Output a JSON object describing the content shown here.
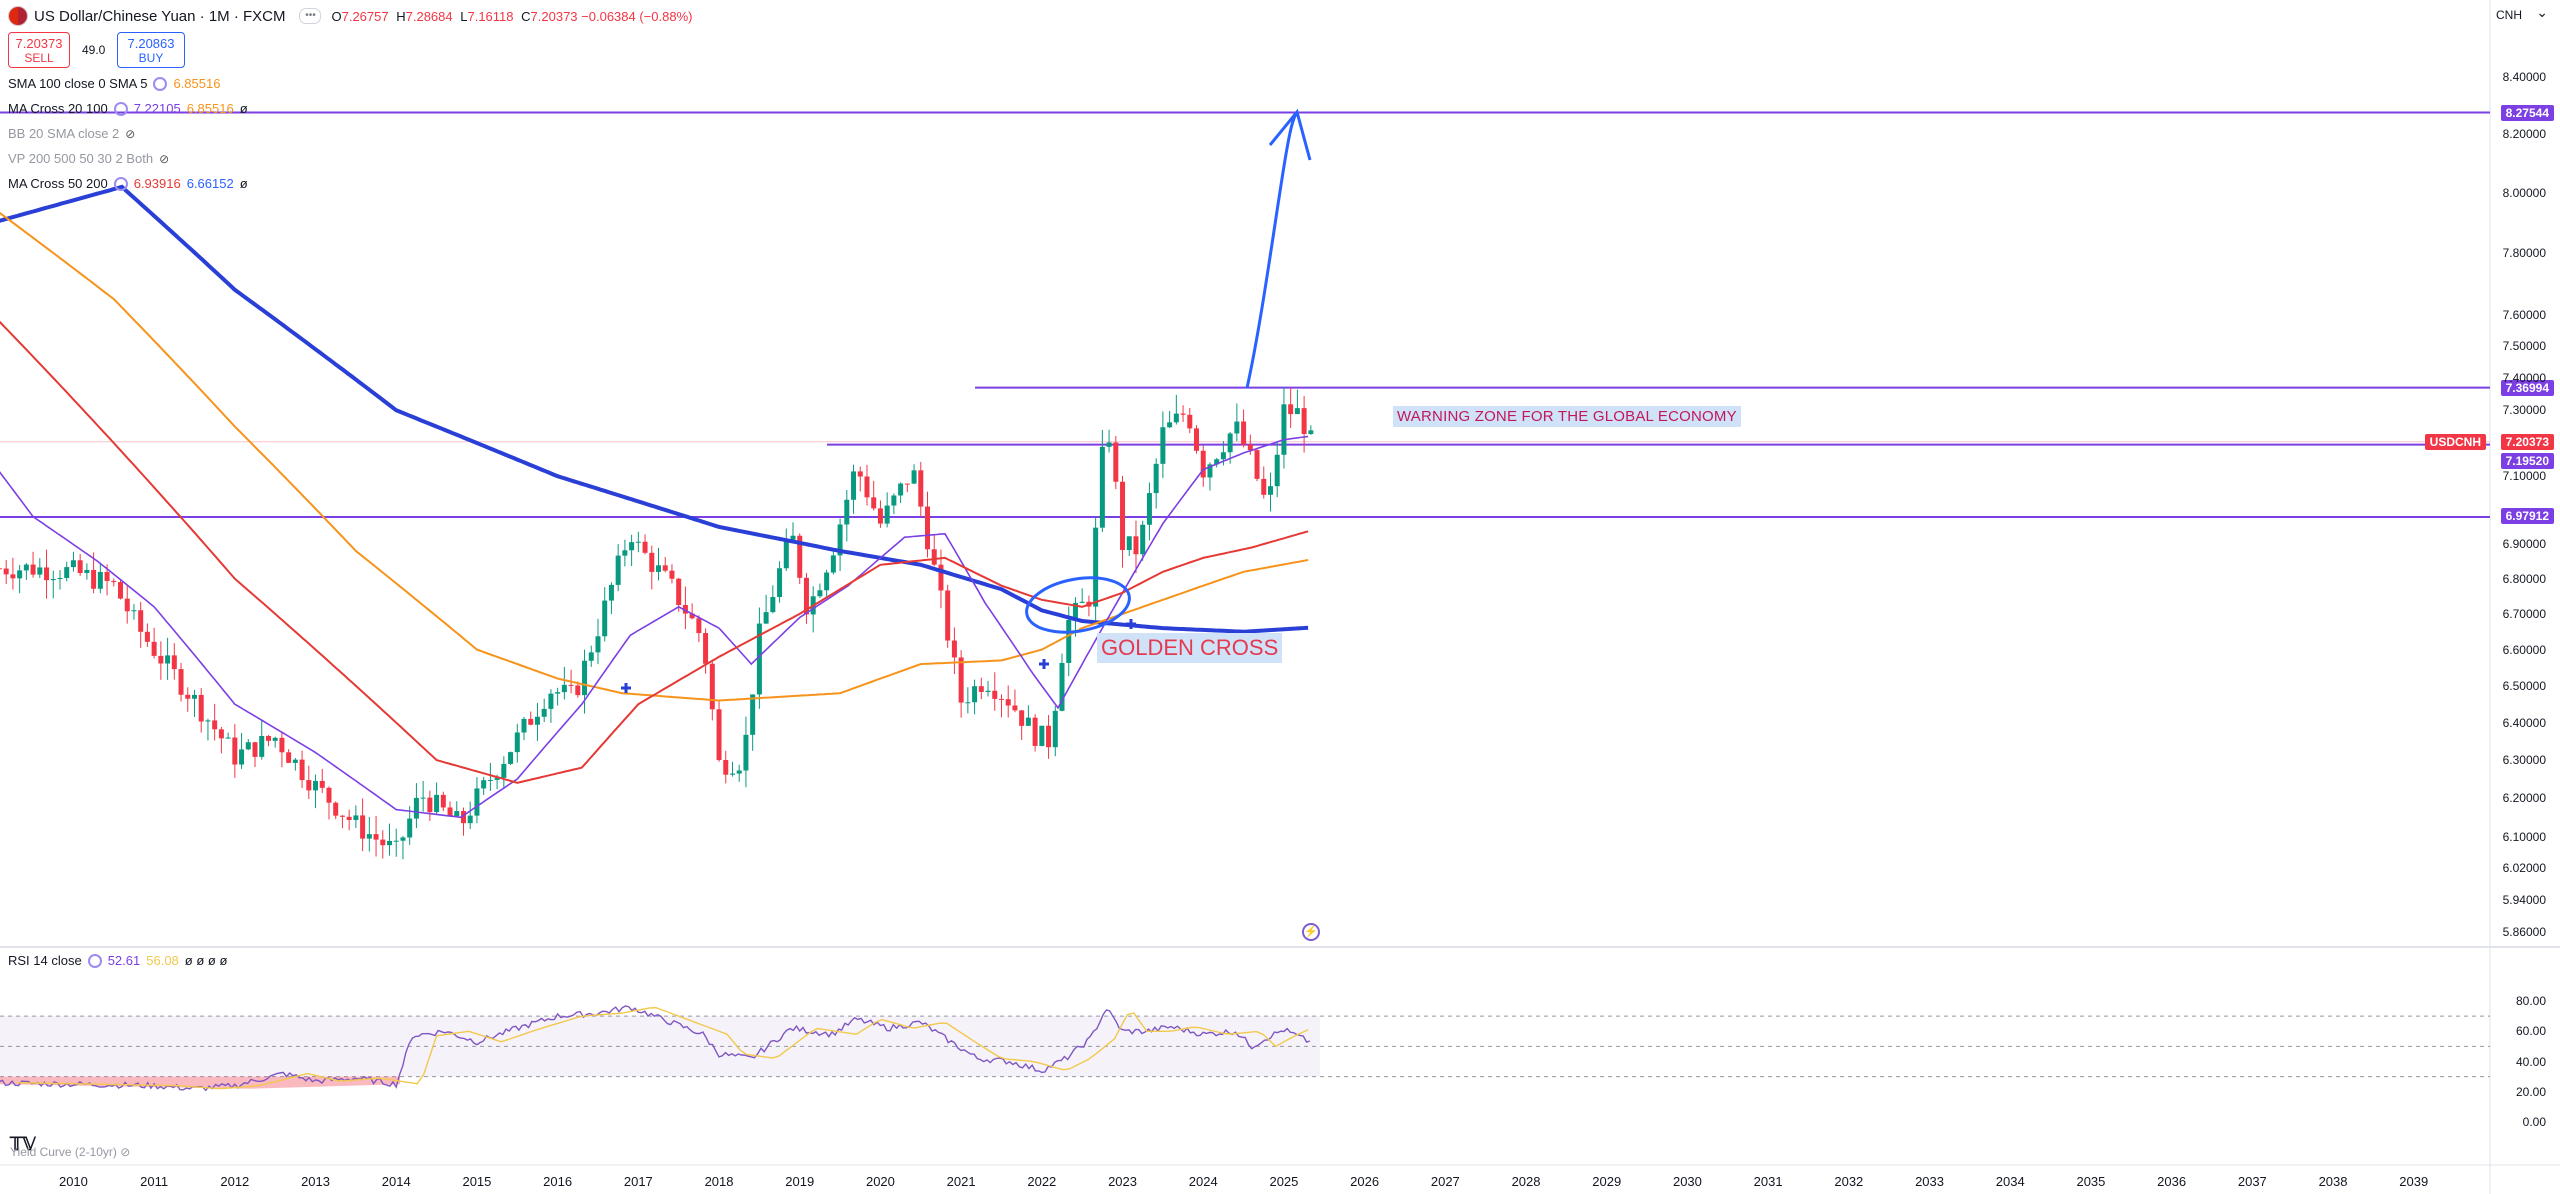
{
  "header": {
    "title": "US Dollar/Chinese Yuan · 1M · FXCM",
    "open_label": "O",
    "open": "7.26757",
    "high_label": "H",
    "high": "7.28684",
    "low_label": "L",
    "low": "7.16118",
    "close_label": "C",
    "close": "7.20373",
    "change": "−0.06384 (−0.88%)",
    "currency": "CNH"
  },
  "trade": {
    "sell_price": "7.20373",
    "sell_label": "SELL",
    "spread": "49.0",
    "buy_price": "7.20863",
    "buy_label": "BUY"
  },
  "indicators": [
    {
      "name": "SMA 100 close 0 SMA 5",
      "v1": "6.85516",
      "v2": "",
      "c1": "#f7931a"
    },
    {
      "name": "MA Cross 20 100",
      "v1": "7.22105",
      "v2": "6.85516",
      "c1": "#7b3fe4",
      "c2": "#f7931a",
      "extra": "ø"
    },
    {
      "name": "BB 20 SMA close 2",
      "v1": "",
      "v2": ""
    },
    {
      "name": "VP 200 500 50 30 2 Both",
      "v1": "",
      "v2": ""
    },
    {
      "name": "MA Cross 50 200",
      "v1": "6.93916",
      "v2": "6.66152",
      "c1": "#e53935",
      "c2": "#2962ff",
      "extra": "ø"
    }
  ],
  "annotations": {
    "warning": "WARNING ZONE FOR THE GLOBAL ECONOMY",
    "golden_cross": "GOLDEN CROSS"
  },
  "price_tags": {
    "top": "8.27544",
    "upper": "7.36994",
    "symbol": "USDCNH",
    "last": "7.20373",
    "mid": "7.19520",
    "lower": "6.97912"
  },
  "rsi": {
    "label": "RSI 14 close",
    "v1": "52.61",
    "v2": "56.08",
    "rest": "ø ø ø ø",
    "levels": [
      70,
      30,
      50
    ],
    "ticks": [
      "80.00",
      "60.00",
      "40.00",
      "20.00",
      "0.00"
    ]
  },
  "yield_label": "Yield Curve (2-10yr)",
  "colors": {
    "up": "#089981",
    "down": "#f23645",
    "ma_purple": "#7b3fe4",
    "ma_red": "#e53935",
    "ma_orange": "#f7931a",
    "ma_blue": "#2a3fd6",
    "hline": "#7b3fe4",
    "drawing": "#2962ff"
  },
  "chart_data": {
    "type": "line",
    "title": "US Dollar/Chinese Yuan · 1M · FXCM",
    "x_ticks": [
      "2010",
      "2011",
      "2012",
      "2013",
      "2014",
      "2015",
      "2016",
      "2017",
      "2018",
      "2019",
      "2020",
      "2021",
      "2022",
      "2023",
      "2024",
      "2025",
      "2026",
      "2027",
      "2028",
      "2029",
      "2030",
      "2031",
      "2032",
      "2033",
      "2034",
      "2035",
      "2036",
      "2037",
      "2038",
      "2039"
    ],
    "y_ticks": [
      "8.40000",
      "8.20000",
      "8.00000",
      "7.80000",
      "7.60000",
      "7.50000",
      "7.40000",
      "7.30000",
      "7.10000",
      "6.90000",
      "6.80000",
      "6.70000",
      "6.60000",
      "6.50000",
      "6.40000",
      "6.30000",
      "6.20000",
      "6.10000",
      "6.02000",
      "5.94000",
      "5.86000"
    ],
    "scale": "log",
    "horizontal_levels": [
      8.27544,
      7.36994,
      7.1952,
      6.97912
    ],
    "price_close": [
      [
        2009.0,
        6.83
      ],
      [
        2009.5,
        6.83
      ],
      [
        2010.0,
        6.82
      ],
      [
        2010.5,
        6.78
      ],
      [
        2010.8,
        6.66
      ],
      [
        2011.0,
        6.6
      ],
      [
        2011.5,
        6.46
      ],
      [
        2012.0,
        6.31
      ],
      [
        2012.5,
        6.36
      ],
      [
        2012.8,
        6.28
      ],
      [
        2013.0,
        6.23
      ],
      [
        2013.5,
        6.13
      ],
      [
        2014.0,
        6.06
      ],
      [
        2014.3,
        6.21
      ],
      [
        2014.8,
        6.13
      ],
      [
        2015.0,
        6.2
      ],
      [
        2015.6,
        6.39
      ],
      [
        2015.9,
        6.49
      ],
      [
        2016.2,
        6.47
      ],
      [
        2016.5,
        6.66
      ],
      [
        2016.9,
        6.94
      ],
      [
        2017.0,
        6.89
      ],
      [
        2017.4,
        6.78
      ],
      [
        2017.8,
        6.63
      ],
      [
        2018.0,
        6.29
      ],
      [
        2018.3,
        6.3
      ],
      [
        2018.5,
        6.64
      ],
      [
        2018.9,
        6.93
      ],
      [
        2019.1,
        6.71
      ],
      [
        2019.4,
        6.88
      ],
      [
        2019.7,
        7.13
      ],
      [
        2020.0,
        6.96
      ],
      [
        2020.4,
        7.12
      ],
      [
        2020.7,
        6.79
      ],
      [
        2021.0,
        6.46
      ],
      [
        2021.3,
        6.52
      ],
      [
        2021.6,
        6.46
      ],
      [
        2021.9,
        6.37
      ],
      [
        2022.1,
        6.35
      ],
      [
        2022.3,
        6.67
      ],
      [
        2022.6,
        6.75
      ],
      [
        2022.8,
        7.29
      ],
      [
        2023.0,
        6.9
      ],
      [
        2023.2,
        6.88
      ],
      [
        2023.5,
        7.23
      ],
      [
        2023.8,
        7.3
      ],
      [
        2024.0,
        7.12
      ],
      [
        2024.4,
        7.25
      ],
      [
        2024.6,
        7.14
      ],
      [
        2024.8,
        7.0
      ],
      [
        2025.0,
        7.3
      ],
      [
        2025.2,
        7.29
      ],
      [
        2025.33,
        7.20373
      ]
    ],
    "series": [
      {
        "name": "MA Cross 50 200",
        "values": [
          [
            2009.0,
            7.9
          ],
          [
            2010.6,
            8.02
          ],
          [
            2012.0,
            7.68
          ],
          [
            2014.0,
            7.3
          ],
          [
            2016.0,
            7.1
          ],
          [
            2018.0,
            6.95
          ],
          [
            2019.5,
            6.88
          ],
          [
            2020.5,
            6.84
          ],
          [
            2021.5,
            6.77
          ],
          [
            2022.0,
            6.71
          ],
          [
            2022.5,
            6.68
          ],
          [
            2023.5,
            6.66
          ],
          [
            2024.5,
            6.65
          ],
          [
            2025.33,
            6.66152
          ]
        ]
      },
      {
        "name": "SMA 100 close 0 SMA 5",
        "values": [
          [
            2009.0,
            7.95
          ],
          [
            2010.5,
            7.65
          ],
          [
            2012.0,
            7.25
          ],
          [
            2013.5,
            6.88
          ],
          [
            2015.0,
            6.6
          ],
          [
            2016.0,
            6.52
          ],
          [
            2016.8,
            6.48
          ],
          [
            2018.0,
            6.46
          ],
          [
            2019.5,
            6.48
          ],
          [
            2020.5,
            6.56
          ],
          [
            2021.5,
            6.57
          ],
          [
            2022.0,
            6.6
          ],
          [
            2022.5,
            6.66
          ],
          [
            2023.5,
            6.74
          ],
          [
            2024.5,
            6.82
          ],
          [
            2025.33,
            6.85516
          ]
        ]
      },
      {
        "name": "MA Cross 20 100",
        "values": [
          [
            2009.0,
            7.14
          ],
          [
            2009.5,
            6.98
          ],
          [
            2010.3,
            6.85
          ],
          [
            2011.0,
            6.72
          ],
          [
            2012.0,
            6.45
          ],
          [
            2013.0,
            6.32
          ],
          [
            2014.0,
            6.17
          ],
          [
            2014.8,
            6.15
          ],
          [
            2015.5,
            6.25
          ],
          [
            2016.3,
            6.45
          ],
          [
            2016.9,
            6.64
          ],
          [
            2017.5,
            6.72
          ],
          [
            2018.0,
            6.66
          ],
          [
            2018.4,
            6.56
          ],
          [
            2019.0,
            6.69
          ],
          [
            2019.6,
            6.78
          ],
          [
            2020.3,
            6.92
          ],
          [
            2020.8,
            6.93
          ],
          [
            2021.3,
            6.73
          ],
          [
            2021.9,
            6.53
          ],
          [
            2022.2,
            6.44
          ],
          [
            2022.6,
            6.6
          ],
          [
            2023.0,
            6.76
          ],
          [
            2023.5,
            6.96
          ],
          [
            2024.0,
            7.12
          ],
          [
            2024.5,
            7.17
          ],
          [
            2025.0,
            7.21
          ],
          [
            2025.33,
            7.22105
          ]
        ]
      }
    ],
    "rsi_values": [
      [
        2009.0,
        26
      ],
      [
        2010.0,
        25
      ],
      [
        2011.0,
        24
      ],
      [
        2011.5,
        22
      ],
      [
        2012.0,
        24
      ],
      [
        2012.6,
        32
      ],
      [
        2013.0,
        27
      ],
      [
        2013.5,
        29
      ],
      [
        2014.0,
        25
      ],
      [
        2014.2,
        57
      ],
      [
        2014.6,
        60
      ],
      [
        2015.0,
        53
      ],
      [
        2015.5,
        62
      ],
      [
        2016.0,
        70
      ],
      [
        2016.5,
        72
      ],
      [
        2016.9,
        76
      ],
      [
        2017.3,
        68
      ],
      [
        2017.8,
        58
      ],
      [
        2018.0,
        45
      ],
      [
        2018.4,
        42
      ],
      [
        2018.9,
        62
      ],
      [
        2019.4,
        58
      ],
      [
        2019.7,
        68
      ],
      [
        2020.1,
        62
      ],
      [
        2020.5,
        66
      ],
      [
        2020.9,
        52
      ],
      [
        2021.2,
        42
      ],
      [
        2021.6,
        40
      ],
      [
        2022.0,
        34
      ],
      [
        2022.3,
        42
      ],
      [
        2022.6,
        55
      ],
      [
        2022.8,
        75
      ],
      [
        2023.0,
        60
      ],
      [
        2023.3,
        60
      ],
      [
        2023.6,
        63
      ],
      [
        2024.0,
        58
      ],
      [
        2024.4,
        60
      ],
      [
        2024.6,
        50
      ],
      [
        2024.8,
        56
      ],
      [
        2025.0,
        61
      ],
      [
        2025.33,
        52.61
      ]
    ]
  }
}
